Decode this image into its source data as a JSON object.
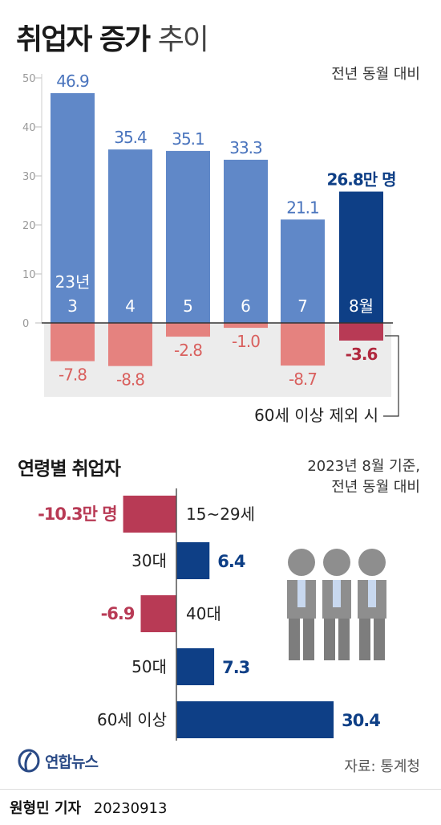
{
  "title": {
    "main": "취업자 증가",
    "sub": "추이"
  },
  "top_note": "전년 동월 대비",
  "chart_data": [
    {
      "type": "bar",
      "categories": [
        "23년 3",
        "4",
        "5",
        "6",
        "7",
        "8월"
      ],
      "category_lines": [
        [
          "23년",
          "3"
        ],
        [
          "4"
        ],
        [
          "5"
        ],
        [
          "6"
        ],
        [
          "7"
        ],
        [
          "8월"
        ]
      ],
      "series": [
        {
          "values": [
            46.9,
            35.4,
            35.1,
            33.3,
            21.1,
            26.8
          ],
          "labels": [
            "46.9",
            "35.4",
            "35.1",
            "33.3",
            "21.1",
            "26.8만 명"
          ]
        },
        {
          "name": "60세 이상 제외 시",
          "values": [
            -7.8,
            -8.8,
            -2.8,
            -1.0,
            -8.7,
            -3.6
          ],
          "labels": [
            "-7.8",
            "-8.8",
            "-2.8",
            "-1.0",
            "-8.7",
            "-3.6"
          ]
        }
      ],
      "yticks": [
        50,
        40,
        30,
        20,
        10,
        0
      ],
      "ylim": [
        -12,
        50
      ],
      "highlight_index": 5,
      "annotation": "60세 이상 제외 시",
      "colors": {
        "pos": "#6088c8",
        "pos_highlight": "#0e3f86",
        "neg": "#e5827f",
        "neg_highlight": "#b83a55",
        "label_pos": "#4a74bd",
        "label_pos_highlight": "#0e3f86",
        "label_neg": "#d9605e",
        "label_neg_highlight": "#b0283e",
        "shade": "#ececec"
      }
    },
    {
      "type": "bar",
      "orientation": "horizontal",
      "title": "연령별 취업자",
      "categories": [
        "15~29세",
        "30대",
        "40대",
        "50대",
        "60세 이상"
      ],
      "values": [
        -10.3,
        6.4,
        -6.9,
        7.3,
        30.4
      ],
      "labels": [
        "-10.3만 명",
        "6.4",
        "-6.9",
        "7.3",
        "30.4"
      ],
      "colors": {
        "pos": "#0e3f86",
        "neg": "#b83a55"
      }
    }
  ],
  "section2_title": "연령별 취업자",
  "chart2_note": [
    "2023년 8월 기준,",
    "전년 동월 대비"
  ],
  "logo": {
    "icon": "yonhap-logo-icon",
    "text": "연합뉴스"
  },
  "source": "자료: 통계청",
  "byline": {
    "name": "원형민 기자",
    "date": "20230913"
  }
}
